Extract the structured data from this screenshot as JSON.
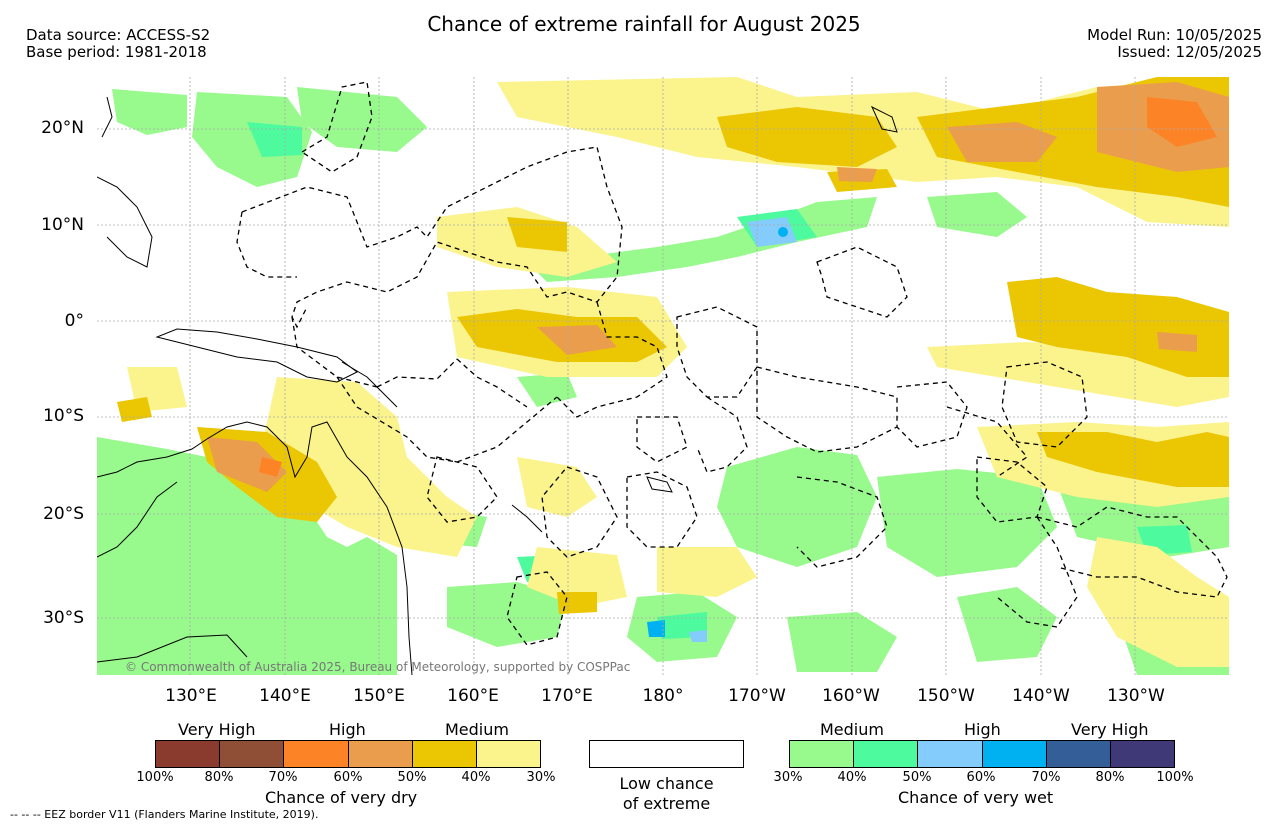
{
  "header": {
    "title": "Chance of extreme rainfall for August 2025",
    "data_source": "Data source: ACCESS-S2",
    "base_period": "Base period: 1981-2018",
    "model_run": "Model Run: 10/05/2025",
    "issued": "Issued: 12/05/2025"
  },
  "map": {
    "longitude_labels": [
      "130°E",
      "140°E",
      "150°E",
      "160°E",
      "170°E",
      "180°",
      "170°W",
      "160°W",
      "150°W",
      "140°W",
      "130°W"
    ],
    "latitude_labels": [
      "20°N",
      "10°N",
      "0°",
      "10°S",
      "20°S",
      "30°S"
    ],
    "copyright": "© Commonwealth of Australia 2025, Bureau of Meteorology, supported by COSPPac"
  },
  "legend": {
    "dry": {
      "categories": [
        "Very High",
        "High",
        "Medium"
      ],
      "colors": [
        "#8b3a2e",
        "#8f4e36",
        "#fd8327",
        "#ea9e4d",
        "#ebc603",
        "#fbf38c"
      ],
      "ticks": [
        "100%",
        "80%",
        "70%",
        "60%",
        "50%",
        "40%",
        "30%"
      ],
      "caption": "Chance of very dry"
    },
    "neutral": {
      "line1": "Low chance",
      "line2": "of extreme",
      "color": "#ffffff"
    },
    "wet": {
      "categories": [
        "Medium",
        "High",
        "Very High"
      ],
      "colors": [
        "#98f98d",
        "#4dfb9e",
        "#84ccfb",
        "#00b1f1",
        "#335e97",
        "#3f3a77"
      ],
      "ticks": [
        "30%",
        "40%",
        "50%",
        "60%",
        "70%",
        "80%",
        "100%"
      ],
      "caption": "Chance of very wet"
    }
  },
  "footer": {
    "eez_note": "--  --  -- EEZ border V11 (Flanders Marine Institute, 2019)."
  }
}
